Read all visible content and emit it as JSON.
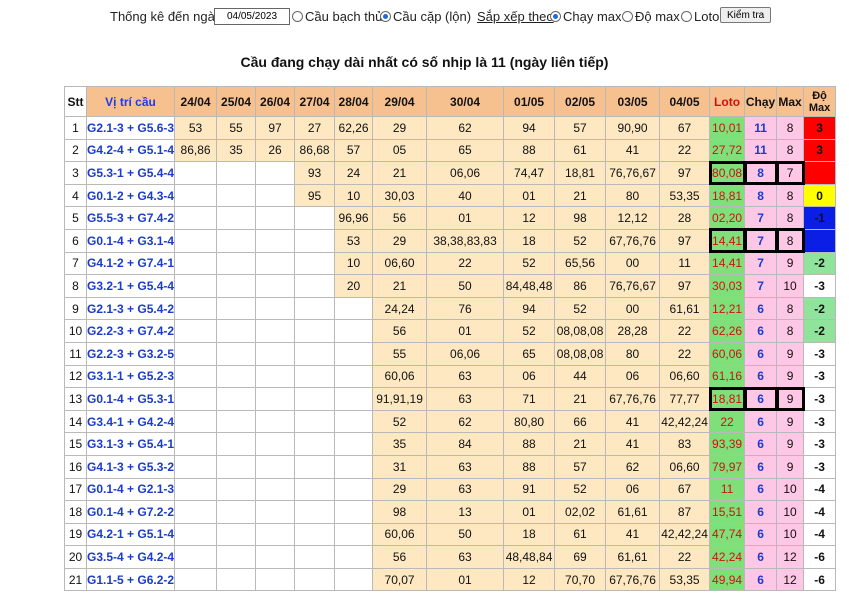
{
  "filter": {
    "label": "Thống kê đến ngày",
    "date": "04/05/2023",
    "options": [
      {
        "label": "Cầu bạch thủ",
        "checked": false
      },
      {
        "label": "Cầu cặp (lộn)",
        "checked": true
      }
    ],
    "sort_label": "Sắp xếp theo",
    "sort_options": [
      {
        "label": "Chạy max",
        "checked": true
      },
      {
        "label": "Độ max",
        "checked": false
      },
      {
        "label": "Loto",
        "checked": false
      }
    ],
    "check_button": "Kiểm tra"
  },
  "title": "Cầu đang chạy dài nhất có số nhịp là 11 (ngày liên tiếp)",
  "table": {
    "headers": [
      "Stt",
      "Vị trí cầu",
      "24/04",
      "25/04",
      "26/04",
      "27/04",
      "28/04",
      "29/04",
      "30/04",
      "01/05",
      "02/05",
      "03/05",
      "04/05",
      "Loto",
      "Chạy",
      "Max",
      "Độ Max"
    ],
    "rows": [
      {
        "stt": "1",
        "vitri": "G2.1-3 + G5.6-3",
        "days": [
          "53",
          "55",
          "97",
          "27",
          "62,26",
          "29",
          "62",
          "94",
          "57",
          "90,90",
          "67"
        ],
        "loto": "10,01",
        "chay": "11",
        "max": "8",
        "do": "3",
        "doColor": "#ff0000"
      },
      {
        "stt": "2",
        "vitri": "G4.2-4 + G5.1-4",
        "days": [
          "86,86",
          "35",
          "26",
          "86,68",
          "57",
          "05",
          "65",
          "88",
          "61",
          "41",
          "22"
        ],
        "loto": "27,72",
        "chay": "11",
        "max": "8",
        "do": "3",
        "doColor": "#ff0000"
      },
      {
        "stt": "3",
        "vitri": "G5.3-1 + G5.4-4",
        "days": [
          "",
          "",
          "",
          "93",
          "24",
          "21",
          "06,06",
          "74,47",
          "18,81",
          "76,76,67",
          "97"
        ],
        "loto": "80,08",
        "chay": "8",
        "max": "7",
        "do": "",
        "doColor": "#ff0000"
      },
      {
        "stt": "4",
        "vitri": "G0.1-2 + G4.3-4",
        "days": [
          "",
          "",
          "",
          "95",
          "10",
          "30,03",
          "40",
          "01",
          "21",
          "80",
          "53,35"
        ],
        "loto": "18,81",
        "chay": "8",
        "max": "8",
        "do": "0",
        "doColor": "#ffff00"
      },
      {
        "stt": "5",
        "vitri": "G5.5-3 + G7.4-2",
        "days": [
          "",
          "",
          "",
          "",
          "96,96",
          "56",
          "01",
          "12",
          "98",
          "12,12",
          "28"
        ],
        "loto": "02,20",
        "chay": "7",
        "max": "8",
        "do": "-1",
        "doColor": "#0a1ee6"
      },
      {
        "stt": "6",
        "vitri": "G0.1-4 + G3.1-4",
        "days": [
          "",
          "",
          "",
          "",
          "53",
          "29",
          "38,38,83,83",
          "18",
          "52",
          "67,76,76",
          "97"
        ],
        "loto": "14,41",
        "chay": "7",
        "max": "8",
        "do": "",
        "doColor": "#0a1ee6"
      },
      {
        "stt": "7",
        "vitri": "G4.1-2 + G7.4-1",
        "days": [
          "",
          "",
          "",
          "",
          "10",
          "06,60",
          "22",
          "52",
          "65,56",
          "00",
          "11"
        ],
        "loto": "14,41",
        "chay": "7",
        "max": "9",
        "do": "-2",
        "doColor": "#8fe39a"
      },
      {
        "stt": "8",
        "vitri": "G3.2-1 + G5.4-4",
        "days": [
          "",
          "",
          "",
          "",
          "20",
          "21",
          "50",
          "84,48,48",
          "86",
          "76,76,67",
          "97"
        ],
        "loto": "30,03",
        "chay": "7",
        "max": "10",
        "do": "-3",
        "doColor": "#ffffff"
      },
      {
        "stt": "9",
        "vitri": "G2.1-3 + G5.4-2",
        "days": [
          "",
          "",
          "",
          "",
          "",
          "24,24",
          "76",
          "94",
          "52",
          "00",
          "61,61"
        ],
        "loto": "12,21",
        "chay": "6",
        "max": "8",
        "do": "-2",
        "doColor": "#8fe39a"
      },
      {
        "stt": "10",
        "vitri": "G2.2-3 + G7.4-2",
        "days": [
          "",
          "",
          "",
          "",
          "",
          "56",
          "01",
          "52",
          "08,08,08",
          "28,28",
          "22"
        ],
        "loto": "62,26",
        "chay": "6",
        "max": "8",
        "do": "-2",
        "doColor": "#8fe39a"
      },
      {
        "stt": "11",
        "vitri": "G2.2-3 + G3.2-5",
        "days": [
          "",
          "",
          "",
          "",
          "",
          "55",
          "06,06",
          "65",
          "08,08,08",
          "80",
          "22"
        ],
        "loto": "60,06",
        "chay": "6",
        "max": "9",
        "do": "-3",
        "doColor": "#ffffff"
      },
      {
        "stt": "12",
        "vitri": "G3.1-1 + G5.2-3",
        "days": [
          "",
          "",
          "",
          "",
          "",
          "60,06",
          "63",
          "06",
          "44",
          "06",
          "06,60"
        ],
        "loto": "61,16",
        "chay": "6",
        "max": "9",
        "do": "-3",
        "doColor": "#ffffff"
      },
      {
        "stt": "13",
        "vitri": "G0.1-4 + G5.3-1",
        "days": [
          "",
          "",
          "",
          "",
          "",
          "91,91,19",
          "63",
          "71",
          "21",
          "67,76,76",
          "77,77"
        ],
        "loto": "18,81",
        "chay": "6",
        "max": "9",
        "do": "-3",
        "doColor": "#ffffff"
      },
      {
        "stt": "14",
        "vitri": "G3.4-1 + G4.2-4",
        "days": [
          "",
          "",
          "",
          "",
          "",
          "52",
          "62",
          "80,80",
          "66",
          "41",
          "42,42,24"
        ],
        "loto": "22",
        "chay": "6",
        "max": "9",
        "do": "-3",
        "doColor": "#ffffff"
      },
      {
        "stt": "15",
        "vitri": "G3.1-3 + G5.4-1",
        "days": [
          "",
          "",
          "",
          "",
          "",
          "35",
          "84",
          "88",
          "21",
          "41",
          "83"
        ],
        "loto": "93,39",
        "chay": "6",
        "max": "9",
        "do": "-3",
        "doColor": "#ffffff"
      },
      {
        "stt": "16",
        "vitri": "G4.1-3 + G5.3-2",
        "days": [
          "",
          "",
          "",
          "",
          "",
          "31",
          "63",
          "88",
          "57",
          "62",
          "06,60"
        ],
        "loto": "79,97",
        "chay": "6",
        "max": "9",
        "do": "-3",
        "doColor": "#ffffff"
      },
      {
        "stt": "17",
        "vitri": "G0.1-4 + G2.1-3",
        "days": [
          "",
          "",
          "",
          "",
          "",
          "29",
          "63",
          "91",
          "52",
          "06",
          "67"
        ],
        "loto": "11",
        "chay": "6",
        "max": "10",
        "do": "-4",
        "doColor": "#ffffff"
      },
      {
        "stt": "18",
        "vitri": "G0.1-4 + G7.2-2",
        "days": [
          "",
          "",
          "",
          "",
          "",
          "98",
          "13",
          "01",
          "02,02",
          "61,61",
          "87"
        ],
        "loto": "15,51",
        "chay": "6",
        "max": "10",
        "do": "-4",
        "doColor": "#ffffff"
      },
      {
        "stt": "19",
        "vitri": "G4.2-1 + G5.1-4",
        "days": [
          "",
          "",
          "",
          "",
          "",
          "60,06",
          "50",
          "18",
          "61",
          "41",
          "42,42,24"
        ],
        "loto": "47,74",
        "chay": "6",
        "max": "10",
        "do": "-4",
        "doColor": "#ffffff"
      },
      {
        "stt": "20",
        "vitri": "G3.5-4 + G4.2-4",
        "days": [
          "",
          "",
          "",
          "",
          "",
          "56",
          "63",
          "48,48,84",
          "69",
          "61,61",
          "22"
        ],
        "loto": "42,24",
        "chay": "6",
        "max": "12",
        "do": "-6",
        "doColor": "#ffffff"
      },
      {
        "stt": "21",
        "vitri": "G1.1-5 + G6.2-2",
        "days": [
          "",
          "",
          "",
          "",
          "",
          "70,07",
          "01",
          "12",
          "70,70",
          "67,76,76",
          "53,35"
        ],
        "loto": "49,94",
        "chay": "6",
        "max": "12",
        "do": "-6",
        "doColor": "#ffffff"
      }
    ],
    "highlighted_rows": [
      3,
      6,
      13
    ]
  }
}
